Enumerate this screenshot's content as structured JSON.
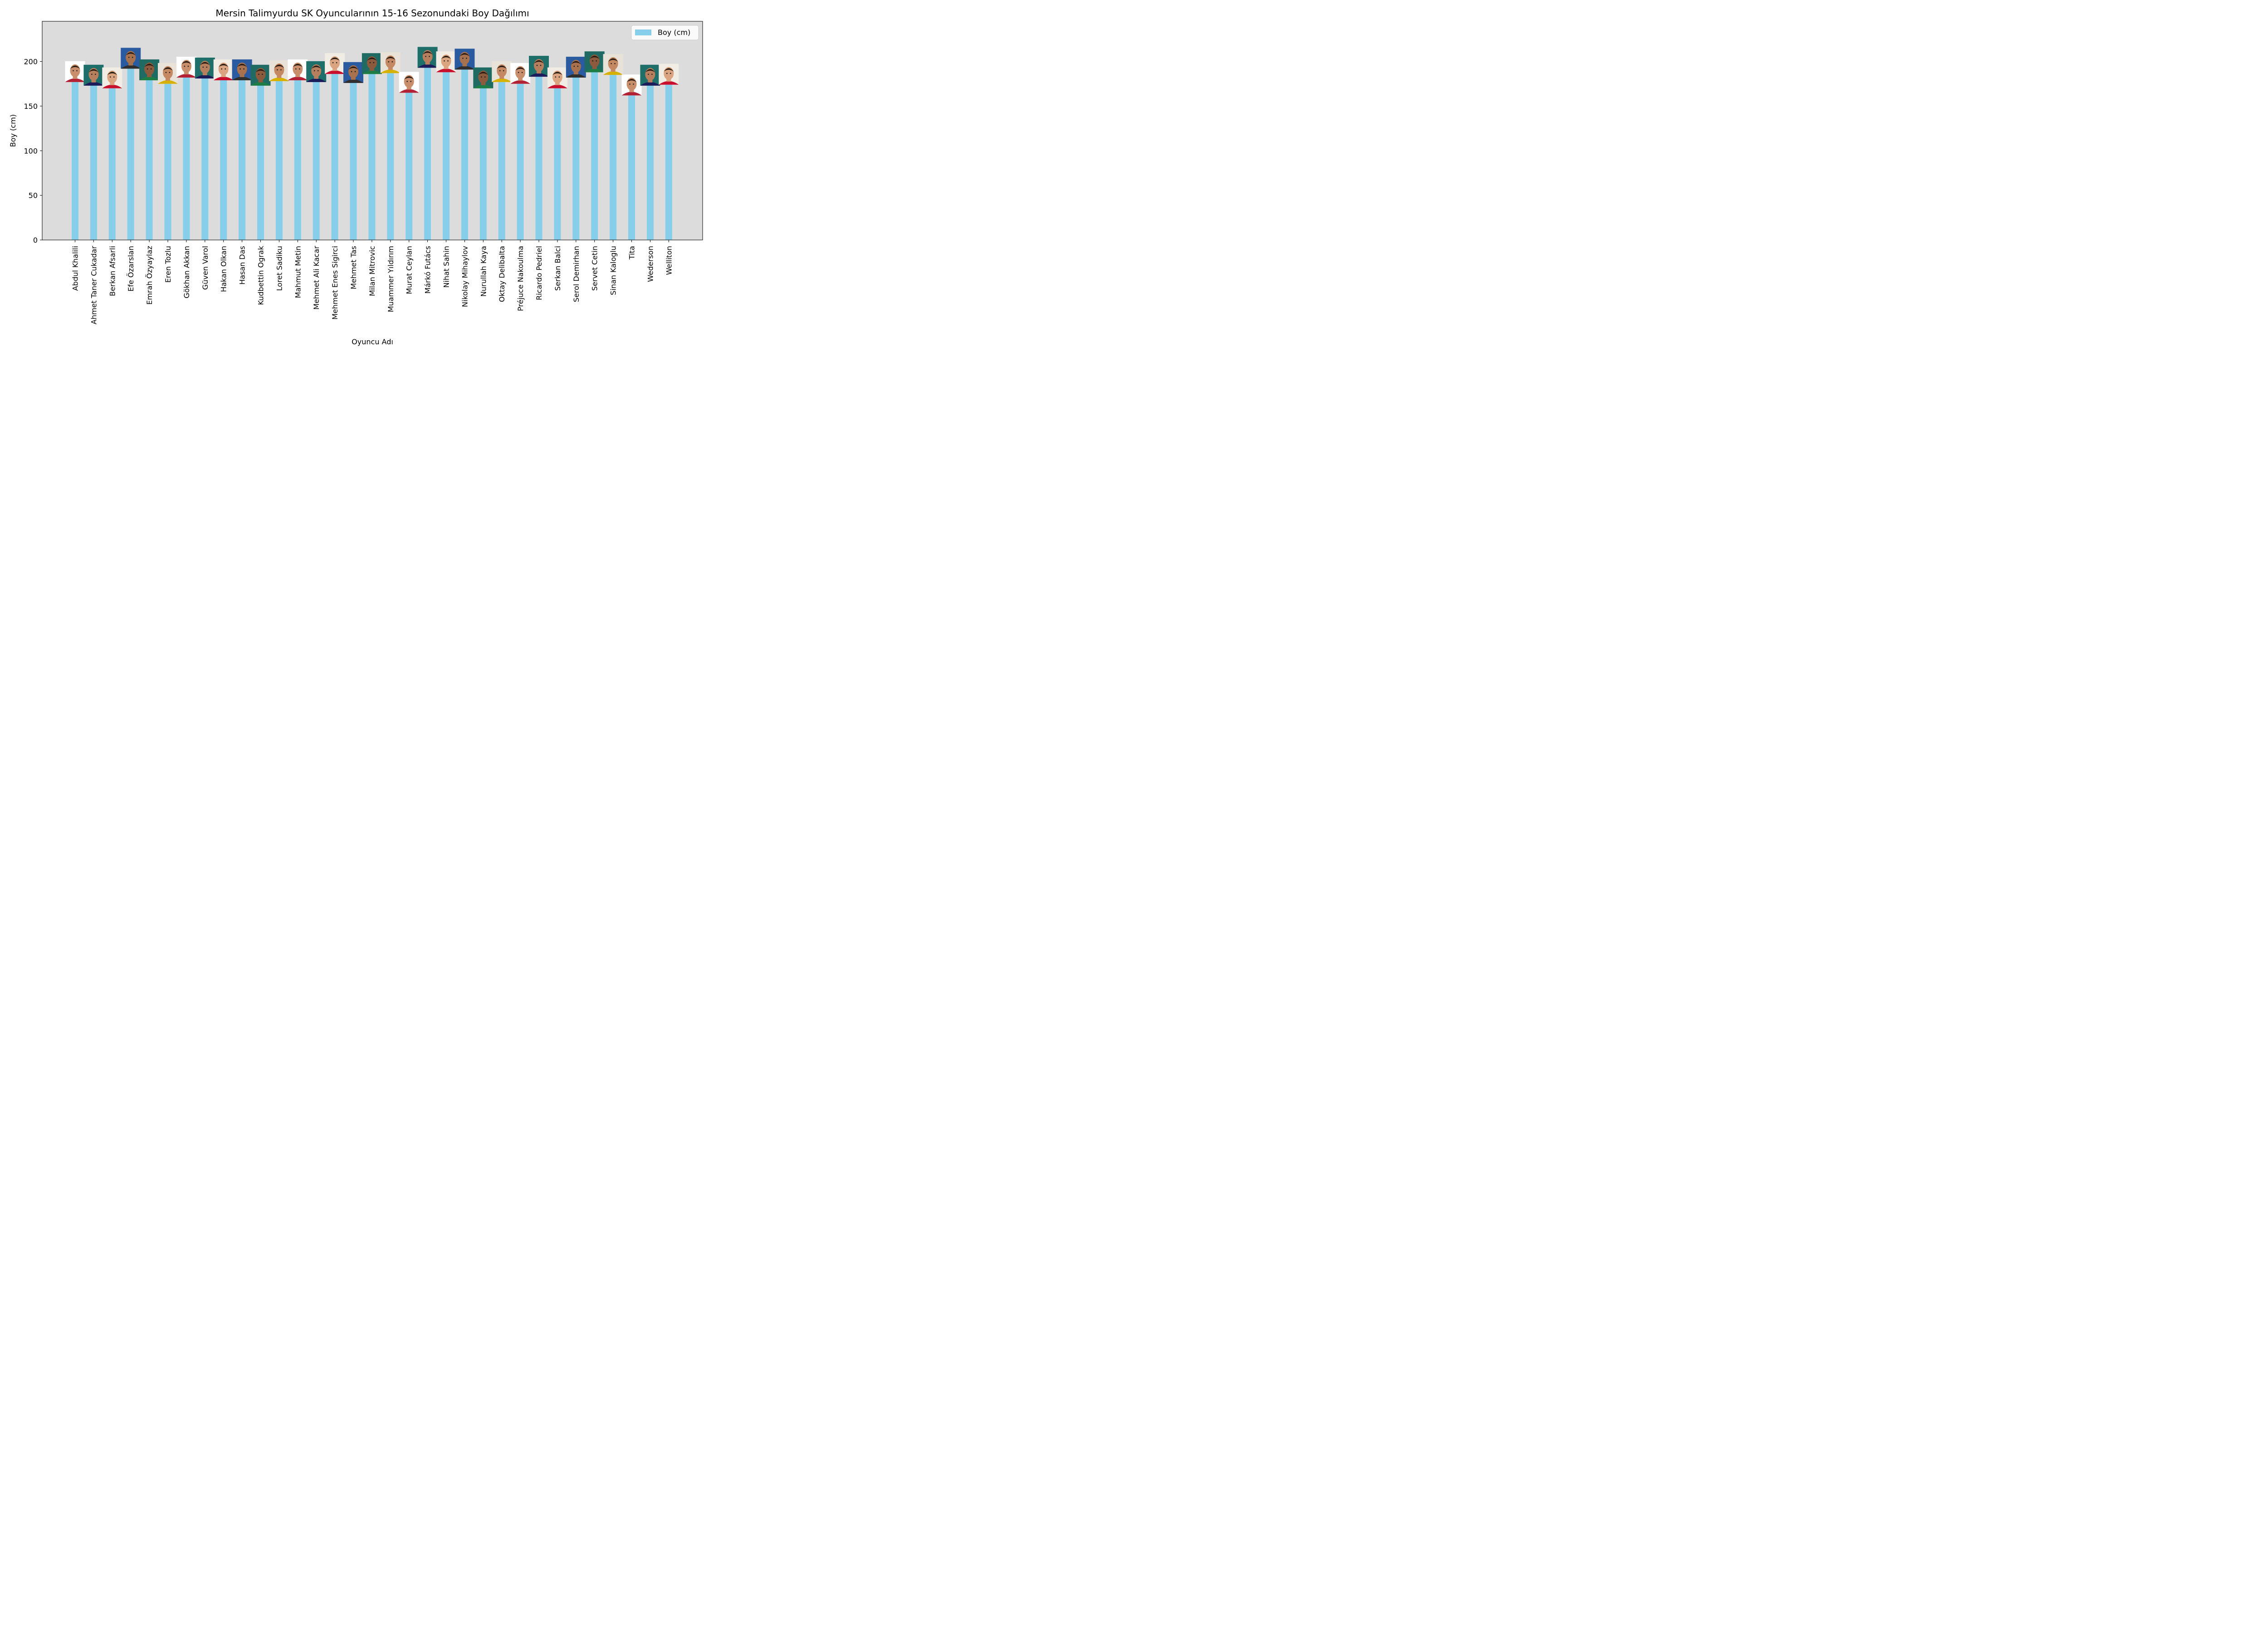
{
  "chart_data": {
    "type": "bar",
    "title": "Mersin Talimyurdu SK Oyuncularının 15-16 Sezonundaki Boy Dağılımı",
    "xlabel": "Oyuncu Adı",
    "ylabel": "Boy (cm)",
    "ylim": [
      0,
      245
    ],
    "yticks": [
      0,
      50,
      100,
      150,
      200
    ],
    "grid": false,
    "legend_position": "top-right",
    "categories": [
      "Abdul Khalili",
      "Ahmet Taner Cukadar",
      "Berkan Afsarli",
      "Efe Özarslan",
      "Emrah Özyaylaz",
      "Eren Tozlu",
      "Gökhan Akkan",
      "Güven Varol",
      "Hakan Olkan",
      "Hasan Das",
      "Kudbettin Ograk",
      "Loret Sadiku",
      "Mahmut Metin",
      "Mehmet Ali Kacar",
      "Mehmet Enes Sigirci",
      "Mehmet Tas",
      "Milan Mitrovic",
      "Muammer Yıldırım",
      "Murat Ceylan",
      "Márkó Futács",
      "Nihat Sahin",
      "Nikolay Mihaylov",
      "Nurullah Kaya",
      "Oktay Delibalta",
      "Préjuce Nakoulma",
      "Ricardo Pedriel",
      "Serkan Balci",
      "Serol Demirhan",
      "Servet Cetin",
      "Sinan Kaloglu",
      "Tita",
      "Wederson",
      "Welliton"
    ],
    "series": [
      {
        "name": "Boy (cm)",
        "color": "#87ceeb",
        "values": [
          180,
          176,
          173,
          195,
          182,
          178,
          185,
          184,
          182,
          182,
          176,
          181,
          182,
          180,
          189,
          179,
          189,
          190,
          168,
          196,
          191,
          194,
          173,
          180,
          178,
          186,
          173,
          185,
          191,
          188,
          165,
          176,
          177
        ]
      }
    ],
    "photo_icons": [
      "player-photo-icon"
    ]
  }
}
